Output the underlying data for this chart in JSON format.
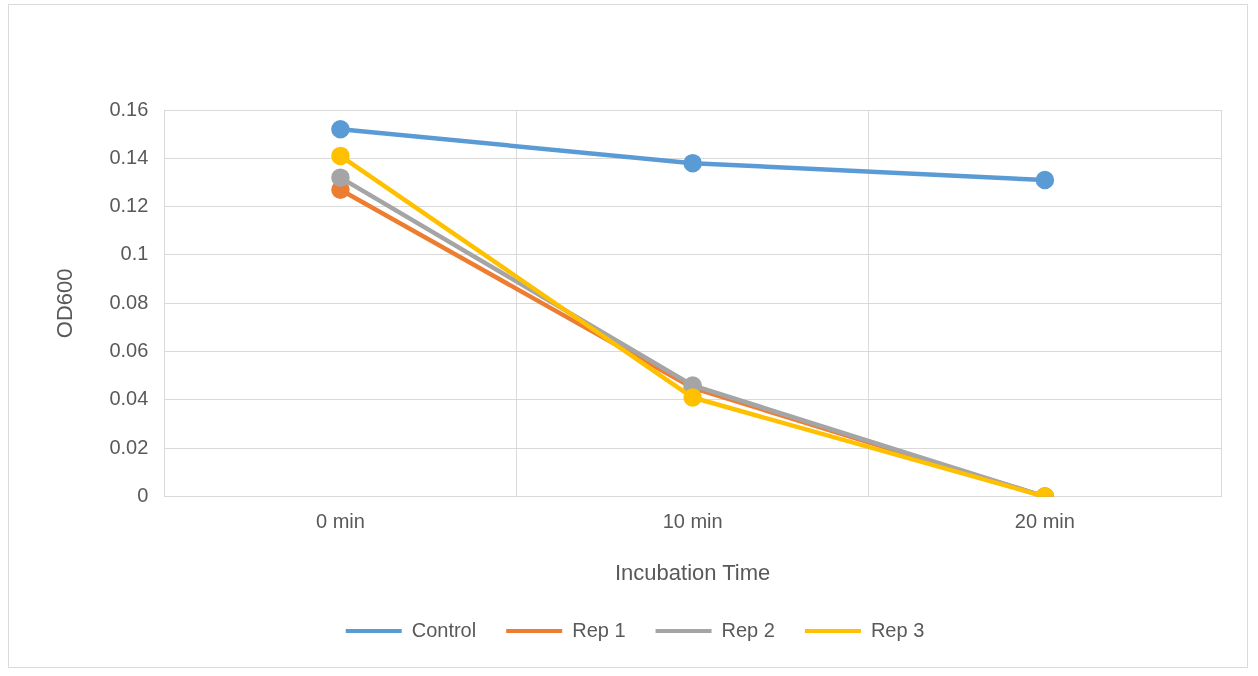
{
  "chart_data": {
    "type": "line",
    "xlabel": "Incubation Time",
    "ylabel": "OD600",
    "categories": [
      "0 min",
      "10 min",
      "20 min"
    ],
    "series": [
      {
        "name": "Control",
        "color": "#5b9bd5",
        "values": [
          0.152,
          0.138,
          0.131
        ]
      },
      {
        "name": "Rep 1",
        "color": "#ed7d31",
        "values": [
          0.127,
          0.045,
          0
        ]
      },
      {
        "name": "Rep 2",
        "color": "#a5a5a5",
        "values": [
          0.132,
          0.046,
          0
        ]
      },
      {
        "name": "Rep 3",
        "color": "#ffc000",
        "values": [
          0.141,
          0.041,
          0
        ]
      }
    ],
    "ylim": [
      0,
      0.16
    ],
    "yticks": [
      0,
      0.02,
      0.04,
      0.06,
      0.08,
      0.1,
      0.12,
      0.14,
      0.16
    ],
    "grid": true,
    "legend": "bottom",
    "marker": "circle",
    "line_style": "solid"
  }
}
